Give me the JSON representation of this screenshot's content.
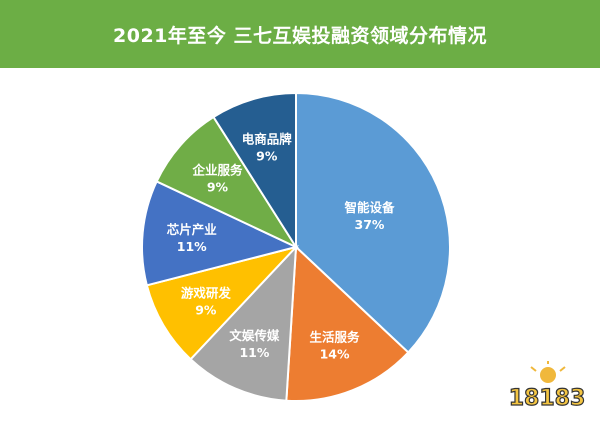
{
  "title": "2021年至今 三七互娱投融资领域分布情况",
  "watermark": {
    "text": "18183"
  },
  "chart_data": {
    "type": "pie",
    "title": "2021年至今 三七互娱投融资领域分布情况",
    "slices": [
      {
        "name": "智能设备",
        "value": 37,
        "label": "37%",
        "color": "#5b9bd5",
        "text_color": "#ffffff"
      },
      {
        "name": "生活服务",
        "value": 14,
        "label": "14%",
        "color": "#ed7d31",
        "text_color": "#ffffff"
      },
      {
        "name": "文娱传媒",
        "value": 11,
        "label": "11%",
        "color": "#a5a5a5",
        "text_color": "#ffffff"
      },
      {
        "name": "游戏研发",
        "value": 9,
        "label": "9%",
        "color": "#ffc000",
        "text_color": "#ffffff"
      },
      {
        "name": "芯片产业",
        "value": 11,
        "label": "11%",
        "color": "#4472c4",
        "text_color": "#ffffff"
      },
      {
        "name": "企业服务",
        "value": 9,
        "label": "9%",
        "color": "#70ad47",
        "text_color": "#ffffff"
      },
      {
        "name": "电商品牌",
        "value": 9,
        "label": "9%",
        "color": "#255e91",
        "text_color": "#ffffff"
      }
    ]
  }
}
